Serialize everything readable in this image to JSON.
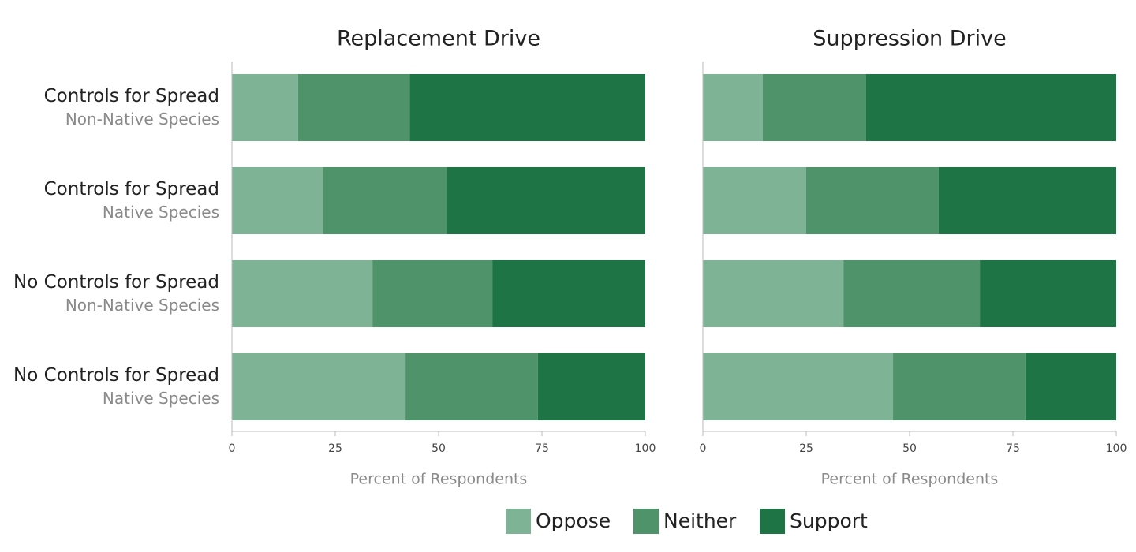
{
  "chart_data": {
    "type": "bar",
    "orientation": "horizontal",
    "stacked": true,
    "categories": [
      "Controls for Spread",
      "Controls for Spread",
      "No Controls for Spread",
      "No Controls for Spread"
    ],
    "subcategories": [
      "Non-Native Species",
      "Native Species",
      "Non-Native Species",
      "Native Species"
    ],
    "xlim": [
      0,
      100
    ],
    "xticks": [
      0,
      25,
      50,
      75,
      100
    ],
    "xlabel": "Percent of Respondents",
    "series": [
      {
        "name": "Oppose",
        "color": "#7fb395"
      },
      {
        "name": "Neither",
        "color": "#4f936a"
      },
      {
        "name": "Support",
        "color": "#1e7444"
      }
    ],
    "panels": [
      {
        "title": "Replacement Drive",
        "values": [
          [
            16,
            22,
            34,
            42
          ],
          [
            27,
            30,
            29,
            32
          ],
          [
            57,
            48,
            37,
            26
          ]
        ]
      },
      {
        "title": "Suppression Drive",
        "values": [
          [
            14.5,
            25,
            34,
            46
          ],
          [
            25,
            32,
            33,
            32
          ],
          [
            60.5,
            43,
            33,
            22
          ]
        ]
      }
    ]
  }
}
